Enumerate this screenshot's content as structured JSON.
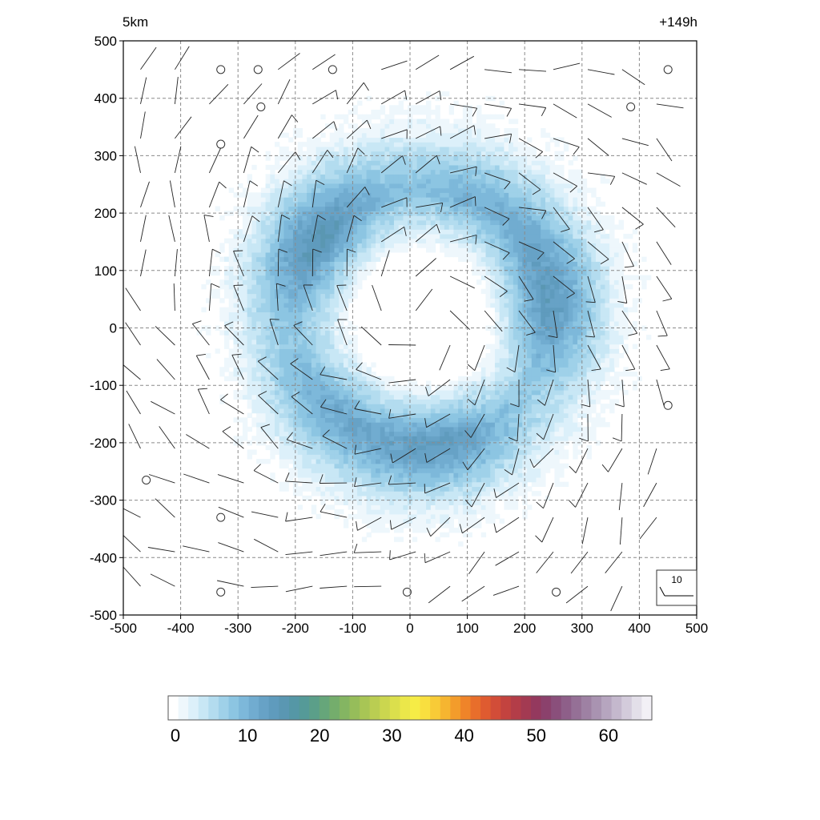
{
  "chart_data": {
    "type": "heatmap",
    "title_left": "5km",
    "title_right": "+149h",
    "xlabel": "",
    "ylabel": "",
    "xlim": [
      -500,
      500
    ],
    "ylim": [
      -500,
      500
    ],
    "x_ticks": [
      -500,
      -400,
      -300,
      -200,
      -100,
      0,
      100,
      200,
      300,
      400,
      500
    ],
    "y_ticks": [
      500,
      400,
      300,
      200,
      100,
      0,
      -100,
      -200,
      -300,
      -400,
      -500
    ],
    "grid": true,
    "field": {
      "structure": "annular ring of higher values centered near the origin, cyclonic circulation",
      "ring_center": [
        20,
        20
      ],
      "eye_radius": 110,
      "eyewall_radius": 215,
      "eyewall_max": 15,
      "outer_radius": 430,
      "estimated_max": 16
    },
    "wind_barbs": {
      "spacing": 60,
      "reference_label": "10",
      "calm_points": [
        [
          -330,
          450
        ],
        [
          -265,
          450
        ],
        [
          -135,
          450
        ],
        [
          450,
          450
        ],
        [
          -260,
          385
        ],
        [
          385,
          385
        ],
        [
          -330,
          320
        ],
        [
          450,
          -135
        ],
        [
          -460,
          -265
        ],
        [
          -330,
          -330
        ],
        [
          -330,
          -460
        ],
        [
          -5,
          -460
        ],
        [
          255,
          -460
        ]
      ]
    },
    "colorbar": {
      "min": 0,
      "max": 67,
      "step": 1.5,
      "tick_labels": [
        "0",
        "10",
        "20",
        "30",
        "40",
        "50",
        "60"
      ],
      "tick_values": [
        0,
        10,
        20,
        30,
        40,
        50,
        60
      ],
      "colors": [
        "#ffffff",
        "#eef7fc",
        "#dcf0fa",
        "#c8e7f5",
        "#b3dcef",
        "#9fd1e9",
        "#8cc5e2",
        "#7db8da",
        "#71acd0",
        "#67a2c6",
        "#5f9bbd",
        "#5a97b2",
        "#5597a6",
        "#559a98",
        "#5b9f89",
        "#66a67a",
        "#74ad6c",
        "#84b562",
        "#96bd5a",
        "#a8c555",
        "#bacd52",
        "#cbd64f",
        "#dbdf4c",
        "#ebe74a",
        "#f6ec46",
        "#f9df3f",
        "#f8cb37",
        "#f6b530",
        "#f39c2b",
        "#ef8429",
        "#e86e2b",
        "#df5b30",
        "#d24d38",
        "#c3433f",
        "#b33d48",
        "#a33a52",
        "#94395e",
        "#8b416c",
        "#8a4f7b",
        "#8e5f89",
        "#957096",
        "#9e81a3",
        "#a993b1",
        "#b6a5bf",
        "#c4b8cd",
        "#d3cbdb",
        "#e3dfe9",
        "#f2f0f6"
      ]
    }
  }
}
